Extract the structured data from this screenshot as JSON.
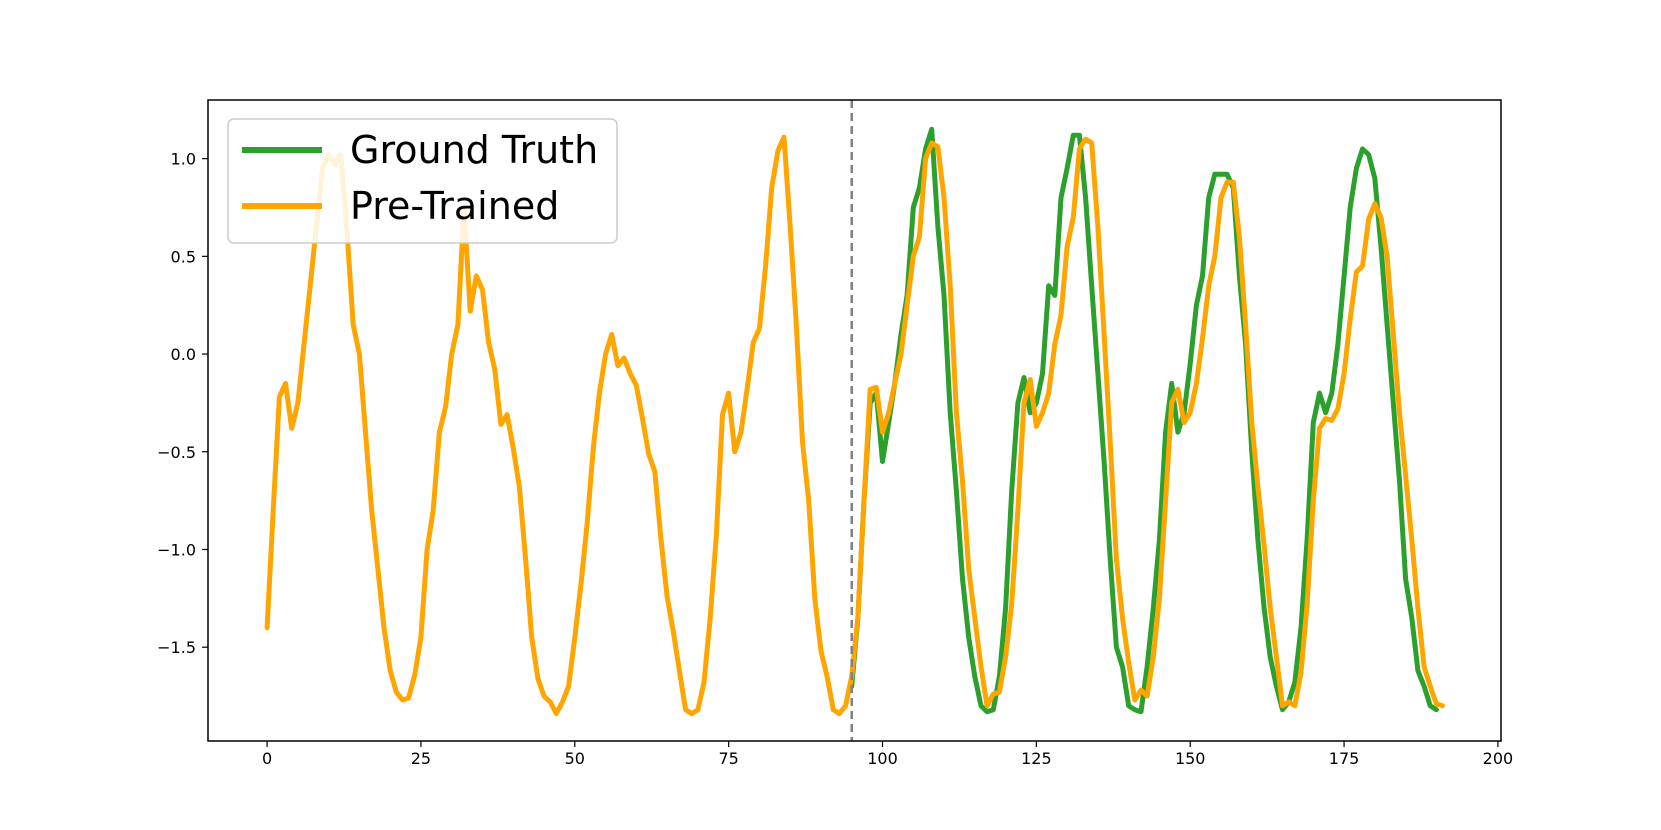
{
  "chart_data": {
    "type": "line",
    "title": "",
    "xlabel": "",
    "ylabel": "",
    "xlim": [
      -9.6,
      200.5
    ],
    "ylim": [
      -1.98,
      1.3
    ],
    "xticks": [
      0,
      25,
      50,
      75,
      100,
      125,
      150,
      175,
      200
    ],
    "yticks": [
      1.0,
      0.5,
      0.0,
      -0.5,
      -1.0,
      -1.5
    ],
    "xtick_labels": [
      "0",
      "25",
      "50",
      "75",
      "100",
      "125",
      "150",
      "175",
      "200"
    ],
    "ytick_labels": [
      "1.0",
      "0.5",
      "0.0",
      "−0.5",
      "−1.0",
      "−1.5"
    ],
    "grid": false,
    "legend_position": "top-left",
    "vline": {
      "x": 95,
      "style": "dashed",
      "color": "#808080"
    },
    "series": [
      {
        "name": "Ground Truth",
        "color": "#2ca02c",
        "x_start": 95,
        "values": [
          -1.7,
          -1.35,
          -0.75,
          -0.25,
          -0.2,
          -0.55,
          -0.35,
          -0.15,
          0.1,
          0.3,
          0.75,
          0.85,
          1.05,
          1.15,
          0.65,
          0.3,
          -0.3,
          -0.7,
          -1.15,
          -1.45,
          -1.65,
          -1.8,
          -1.83,
          -1.82,
          -1.65,
          -1.3,
          -0.7,
          -0.25,
          -0.12,
          -0.3,
          -0.25,
          -0.1,
          0.35,
          0.3,
          0.8,
          0.95,
          1.12,
          1.12,
          0.8,
          0.35,
          -0.1,
          -0.55,
          -1.05,
          -1.5,
          -1.6,
          -1.8,
          -1.82,
          -1.83,
          -1.6,
          -1.3,
          -0.95,
          -0.4,
          -0.15,
          -0.4,
          -0.3,
          -0.05,
          0.25,
          0.4,
          0.8,
          0.92,
          0.92,
          0.92,
          0.85,
          0.4,
          0.05,
          -0.5,
          -0.95,
          -1.3,
          -1.55,
          -1.7,
          -1.82,
          -1.78,
          -1.68,
          -1.4,
          -0.95,
          -0.35,
          -0.2,
          -0.3,
          -0.2,
          0.05,
          0.4,
          0.75,
          0.95,
          1.05,
          1.02,
          0.9,
          0.55,
          0.15,
          -0.25,
          -0.65,
          -1.15,
          -1.35,
          -1.62,
          -1.7,
          -1.8,
          -1.82
        ]
      },
      {
        "name": "Pre-Trained",
        "color": "#ffa500",
        "x_start": 0,
        "values": [
          -1.4,
          -0.8,
          -0.22,
          -0.15,
          -0.38,
          -0.25,
          0.05,
          0.35,
          0.65,
          0.95,
          1.02,
          0.97,
          1.02,
          0.62,
          0.15,
          0.0,
          -0.4,
          -0.8,
          -1.1,
          -1.4,
          -1.62,
          -1.73,
          -1.77,
          -1.76,
          -1.64,
          -1.45,
          -1.0,
          -0.8,
          -0.4,
          -0.27,
          0.0,
          0.15,
          0.75,
          0.22,
          0.4,
          0.33,
          0.06,
          -0.08,
          -0.36,
          -0.31,
          -0.48,
          -0.68,
          -1.05,
          -1.45,
          -1.66,
          -1.75,
          -1.78,
          -1.84,
          -1.78,
          -1.7,
          -1.45,
          -1.18,
          -0.87,
          -0.48,
          -0.2,
          0.0,
          0.1,
          -0.06,
          -0.02,
          -0.1,
          -0.16,
          -0.33,
          -0.51,
          -0.6,
          -0.95,
          -1.24,
          -1.42,
          -1.62,
          -1.82,
          -1.84,
          -1.82,
          -1.68,
          -1.35,
          -0.93,
          -0.31,
          -0.2,
          -0.5,
          -0.4,
          -0.18,
          0.06,
          0.13,
          0.45,
          0.85,
          1.04,
          1.11,
          0.65,
          0.15,
          -0.45,
          -0.75,
          -1.25,
          -1.52,
          -1.65,
          -1.82,
          -1.84,
          -1.8,
          -1.65,
          -1.35,
          -0.75,
          -0.18,
          -0.17,
          -0.4,
          -0.3,
          -0.15,
          0.0,
          0.25,
          0.5,
          0.6,
          1.0,
          1.08,
          1.06,
          0.8,
          0.35,
          -0.3,
          -0.65,
          -1.1,
          -1.35,
          -1.6,
          -1.8,
          -1.74,
          -1.73,
          -1.55,
          -1.28,
          -0.8,
          -0.25,
          -0.13,
          -0.37,
          -0.3,
          -0.2,
          0.05,
          0.2,
          0.55,
          0.7,
          1.05,
          1.1,
          1.08,
          0.65,
          0.1,
          -0.45,
          -1.05,
          -1.35,
          -1.58,
          -1.77,
          -1.72,
          -1.75,
          -1.55,
          -1.25,
          -0.75,
          -0.25,
          -0.18,
          -0.35,
          -0.3,
          -0.15,
          0.08,
          0.35,
          0.5,
          0.8,
          0.88,
          0.88,
          0.6,
          0.15,
          -0.35,
          -0.68,
          -0.98,
          -1.3,
          -1.55,
          -1.8,
          -1.78,
          -1.8,
          -1.63,
          -1.28,
          -0.75,
          -0.38,
          -0.33,
          -0.34,
          -0.28,
          -0.1,
          0.18,
          0.42,
          0.45,
          0.69,
          0.77,
          0.7,
          0.5,
          0.1,
          -0.3,
          -0.62,
          -0.95,
          -1.3,
          -1.6,
          -1.7,
          -1.79,
          -1.8
        ]
      }
    ]
  }
}
